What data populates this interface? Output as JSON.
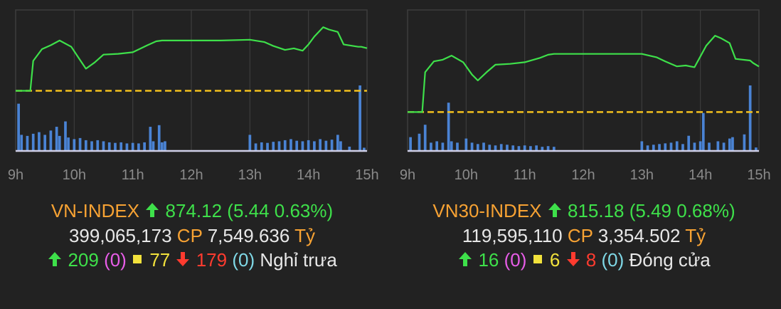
{
  "chart_data": [
    {
      "type": "line",
      "title": "",
      "x_ticks": [
        "9h",
        "10h",
        "11h",
        "12h",
        "13h",
        "14h",
        "15h"
      ],
      "xlim": [
        9,
        15
      ],
      "ylim": [
        861,
        879
      ],
      "reference_value": 868.68,
      "series": [
        {
          "x": [
            9,
            9.25,
            9.3,
            9.45,
            9.6,
            9.75,
            9.95,
            10.1,
            10.2,
            10.35,
            10.5,
            10.75,
            11.0,
            11.25,
            11.4,
            11.5,
            12.0,
            12.5,
            13.0,
            13.25,
            13.4,
            13.6,
            13.75,
            13.9,
            14.0,
            14.1,
            14.25,
            14.35,
            14.5,
            14.6,
            14.85,
            14.9,
            15.0
          ],
          "y": [
            868.68,
            868.68,
            872.5,
            874.0,
            874.5,
            875.1,
            874.3,
            872.6,
            871.5,
            872.3,
            873.3,
            873.4,
            873.6,
            874.5,
            875.0,
            875.1,
            875.1,
            875.1,
            875.2,
            874.9,
            874.4,
            873.9,
            874.1,
            873.8,
            874.6,
            875.6,
            876.8,
            876.5,
            876.2,
            874.6,
            874.3,
            874.3,
            874.12
          ]
        }
      ],
      "volume_bars": [
        {
          "x": 9.05,
          "v": 88
        },
        {
          "x": 9.1,
          "v": 30
        },
        {
          "x": 9.2,
          "v": 28
        },
        {
          "x": 9.3,
          "v": 32
        },
        {
          "x": 9.4,
          "v": 35
        },
        {
          "x": 9.5,
          "v": 30
        },
        {
          "x": 9.6,
          "v": 38
        },
        {
          "x": 9.7,
          "v": 45
        },
        {
          "x": 9.75,
          "v": 28
        },
        {
          "x": 9.85,
          "v": 55
        },
        {
          "x": 9.9,
          "v": 25
        },
        {
          "x": 10.0,
          "v": 22
        },
        {
          "x": 10.1,
          "v": 24
        },
        {
          "x": 10.2,
          "v": 20
        },
        {
          "x": 10.3,
          "v": 18
        },
        {
          "x": 10.4,
          "v": 20
        },
        {
          "x": 10.5,
          "v": 18
        },
        {
          "x": 10.6,
          "v": 16
        },
        {
          "x": 10.7,
          "v": 15
        },
        {
          "x": 10.8,
          "v": 16
        },
        {
          "x": 10.9,
          "v": 14
        },
        {
          "x": 11.0,
          "v": 15
        },
        {
          "x": 11.1,
          "v": 14
        },
        {
          "x": 11.2,
          "v": 16
        },
        {
          "x": 11.3,
          "v": 45
        },
        {
          "x": 11.35,
          "v": 18
        },
        {
          "x": 11.45,
          "v": 48
        },
        {
          "x": 11.5,
          "v": 16
        },
        {
          "x": 11.55,
          "v": 18
        },
        {
          "x": 13.0,
          "v": 30
        },
        {
          "x": 13.1,
          "v": 14
        },
        {
          "x": 13.2,
          "v": 16
        },
        {
          "x": 13.3,
          "v": 15
        },
        {
          "x": 13.4,
          "v": 17
        },
        {
          "x": 13.5,
          "v": 18
        },
        {
          "x": 13.6,
          "v": 20
        },
        {
          "x": 13.7,
          "v": 22
        },
        {
          "x": 13.8,
          "v": 19
        },
        {
          "x": 13.9,
          "v": 18
        },
        {
          "x": 14.0,
          "v": 20
        },
        {
          "x": 14.1,
          "v": 18
        },
        {
          "x": 14.2,
          "v": 22
        },
        {
          "x": 14.3,
          "v": 19
        },
        {
          "x": 14.4,
          "v": 21
        },
        {
          "x": 14.5,
          "v": 30
        },
        {
          "x": 14.55,
          "v": 18
        },
        {
          "x": 14.7,
          "v": 8
        },
        {
          "x": 14.88,
          "v": 122
        },
        {
          "x": 14.95,
          "v": 6
        }
      ]
    },
    {
      "type": "line",
      "title": "",
      "x_ticks": [
        "9h",
        "10h",
        "11h",
        "12h",
        "13h",
        "14h",
        "15h"
      ],
      "xlim": [
        9,
        15
      ],
      "ylim": [
        805,
        822
      ],
      "reference_value": 809.69,
      "series": [
        {
          "x": [
            9,
            9.25,
            9.3,
            9.45,
            9.6,
            9.75,
            9.95,
            10.1,
            10.2,
            10.35,
            10.5,
            10.75,
            11.0,
            11.25,
            11.4,
            11.5,
            12.0,
            12.5,
            13.0,
            13.25,
            13.4,
            13.6,
            13.75,
            13.9,
            14.0,
            14.1,
            14.25,
            14.35,
            14.5,
            14.6,
            14.85,
            14.9,
            15.0
          ],
          "y": [
            809.69,
            809.69,
            814.5,
            815.8,
            816.0,
            816.5,
            815.7,
            814.2,
            813.5,
            814.5,
            815.4,
            815.5,
            815.7,
            816.2,
            816.6,
            816.7,
            816.7,
            816.7,
            816.7,
            816.3,
            815.8,
            815.2,
            815.3,
            815.1,
            816.4,
            817.7,
            818.9,
            818.6,
            818.0,
            816.1,
            815.9,
            815.6,
            815.18
          ]
        }
      ],
      "volume_bars": [
        {
          "x": 9.05,
          "v": 20
        },
        {
          "x": 9.2,
          "v": 25
        },
        {
          "x": 9.3,
          "v": 38
        },
        {
          "x": 9.4,
          "v": 12
        },
        {
          "x": 9.5,
          "v": 14
        },
        {
          "x": 9.6,
          "v": 12
        },
        {
          "x": 9.7,
          "v": 70
        },
        {
          "x": 9.75,
          "v": 14
        },
        {
          "x": 9.85,
          "v": 12
        },
        {
          "x": 10.0,
          "v": 18
        },
        {
          "x": 10.1,
          "v": 12
        },
        {
          "x": 10.2,
          "v": 10
        },
        {
          "x": 10.3,
          "v": 12
        },
        {
          "x": 10.4,
          "v": 9
        },
        {
          "x": 10.5,
          "v": 8
        },
        {
          "x": 10.6,
          "v": 10
        },
        {
          "x": 10.7,
          "v": 9
        },
        {
          "x": 10.8,
          "v": 8
        },
        {
          "x": 10.9,
          "v": 7
        },
        {
          "x": 11.0,
          "v": 8
        },
        {
          "x": 11.1,
          "v": 7
        },
        {
          "x": 11.2,
          "v": 8
        },
        {
          "x": 11.3,
          "v": 6
        },
        {
          "x": 11.4,
          "v": 7
        },
        {
          "x": 11.5,
          "v": 6
        },
        {
          "x": 13.0,
          "v": 14
        },
        {
          "x": 13.1,
          "v": 8
        },
        {
          "x": 13.2,
          "v": 9
        },
        {
          "x": 13.3,
          "v": 10
        },
        {
          "x": 13.4,
          "v": 11
        },
        {
          "x": 13.5,
          "v": 12
        },
        {
          "x": 13.6,
          "v": 14
        },
        {
          "x": 13.7,
          "v": 10
        },
        {
          "x": 13.8,
          "v": 22
        },
        {
          "x": 13.9,
          "v": 12
        },
        {
          "x": 14.0,
          "v": 14
        },
        {
          "x": 14.05,
          "v": 55
        },
        {
          "x": 14.15,
          "v": 12
        },
        {
          "x": 14.3,
          "v": 14
        },
        {
          "x": 14.4,
          "v": 12
        },
        {
          "x": 14.5,
          "v": 18
        },
        {
          "x": 14.55,
          "v": 20
        },
        {
          "x": 14.75,
          "v": 24
        },
        {
          "x": 14.85,
          "v": 95
        },
        {
          "x": 14.95,
          "v": 5
        }
      ]
    }
  ],
  "vnindex": {
    "name": "VN-INDEX",
    "value": "874.12",
    "change": "(5.44 0.63%)",
    "volume": "399,065,173",
    "volume_unit": "CP",
    "turnover": "7,549.636",
    "turnover_unit": "Tỷ",
    "advancers": "209",
    "ceiling": "(0)",
    "unchanged": "77",
    "decliners": "179",
    "floor": "(0)",
    "status": "Nghỉ trưa"
  },
  "vn30": {
    "name": "VN30-INDEX",
    "value": "815.18",
    "change": "(5.49 0.68%)",
    "volume": "119,595,110",
    "volume_unit": "CP",
    "turnover": "3,354.502",
    "turnover_unit": "Tỷ",
    "advancers": "16",
    "ceiling": "(0)",
    "unchanged": "6",
    "decliners": "8",
    "floor": "(0)",
    "status": "Đóng cửa"
  },
  "colors": {
    "line": "#3ee04a",
    "reference": "#f2c01e",
    "volume": "#4f8ee8",
    "grid": "#3d3d3d",
    "axis": "#cfcfe8",
    "background": "#222222"
  }
}
